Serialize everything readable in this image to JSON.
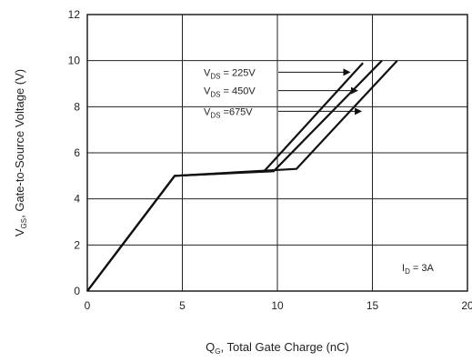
{
  "chart_data": {
    "type": "line",
    "title": "",
    "xlabel": {
      "main": "Q",
      "sub": "G",
      "rest": ", Total Gate Charge (nC)"
    },
    "ylabel": {
      "main": "V",
      "sub": "GS",
      "rest": ", Gate-to-Source Voltage (V)"
    },
    "xlim": [
      0,
      20
    ],
    "ylim": [
      0,
      12
    ],
    "xticks": [
      "0",
      "5",
      "10",
      "15",
      "20"
    ],
    "yticks": [
      "0",
      "2",
      "4",
      "6",
      "8",
      "10",
      "12"
    ],
    "grid": true,
    "series": [
      {
        "name": {
          "main": "V",
          "sub": "DS",
          "rest": " = 225V"
        },
        "x": [
          0,
          4.6,
          9.3,
          14.5
        ],
        "y": [
          0,
          5.0,
          5.2,
          9.9
        ]
      },
      {
        "name": {
          "main": "V",
          "sub": "DS",
          "rest": " = 450V"
        },
        "x": [
          0,
          4.6,
          9.8,
          15.5
        ],
        "y": [
          0,
          5.0,
          5.2,
          10.0
        ]
      },
      {
        "name": {
          "main": "V",
          "sub": "DS",
          "rest": " =675V"
        },
        "x": [
          0,
          4.6,
          11.0,
          16.3
        ],
        "y": [
          0,
          5.0,
          5.3,
          10.0
        ]
      }
    ],
    "annotation": {
      "main": "I",
      "sub": "D",
      "rest": " = 3A"
    },
    "line_color": "#111111",
    "grid_color": "#222222"
  }
}
